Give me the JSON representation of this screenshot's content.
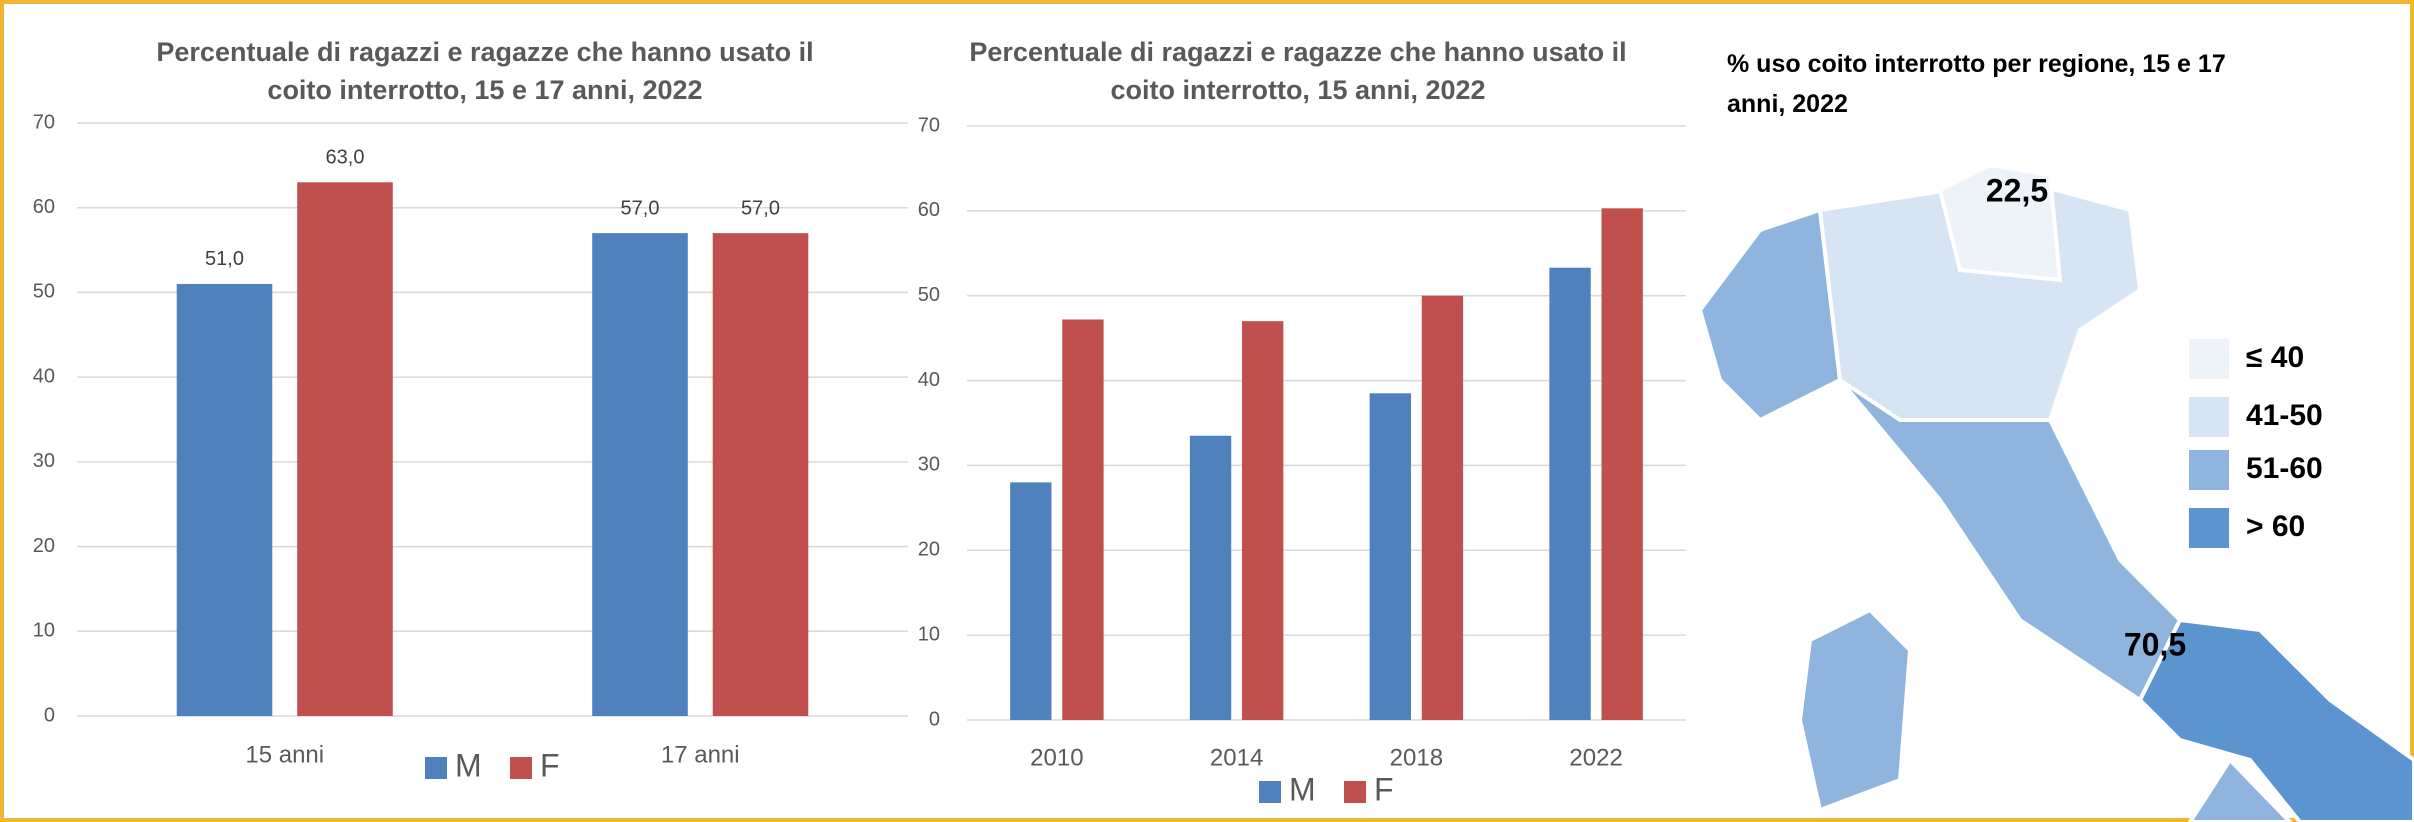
{
  "chart_data": [
    {
      "type": "bar",
      "title": "Percentuale di ragazzi e ragazze che hanno usato il coito interrotto, 15 e 17 anni, 2022",
      "categories": [
        "15 anni",
        "17 anni"
      ],
      "series": [
        {
          "name": "M",
          "color": "#4f81bd",
          "values": [
            51,
            57
          ],
          "value_labels": [
            "51,0",
            "57,0"
          ]
        },
        {
          "name": "F",
          "color": "#c0504d",
          "values": [
            63,
            57
          ],
          "value_labels": [
            "63,0",
            "57,0"
          ]
        }
      ],
      "ylim": [
        0,
        70
      ],
      "yticks": [
        0,
        10,
        20,
        30,
        40,
        50,
        60,
        70
      ],
      "grid": true,
      "legend": "bottom"
    },
    {
      "type": "bar",
      "title": "Percentuale di ragazzi e ragazze che hanno usato il coito interrotto, 15 anni, 2022",
      "categories": [
        "2010",
        "2014",
        "2018",
        "2022"
      ],
      "series": [
        {
          "name": "M",
          "color": "#4f81bd",
          "values": [
            28,
            33.5,
            38.5,
            53.3
          ]
        },
        {
          "name": "F",
          "color": "#c0504d",
          "values": [
            47.2,
            47,
            50,
            60.3
          ]
        }
      ],
      "ylim": [
        0,
        70
      ],
      "yticks": [
        0,
        10,
        20,
        30,
        40,
        50,
        60,
        70
      ],
      "grid": true,
      "legend": "bottom"
    },
    {
      "type": "map",
      "title": "% uso coito interrotto per regione, 15 e 17 anni, 2022",
      "annotations": [
        "22,5",
        "70,5"
      ],
      "legend": [
        {
          "label": "≤ 40",
          "color": "#eef3fa"
        },
        {
          "label": "41-50",
          "color": "#d6e4f3"
        },
        {
          "label": "51-60",
          "color": "#8fb4de"
        },
        {
          "label": "> 60",
          "color": "#5b94cf"
        }
      ]
    }
  ]
}
